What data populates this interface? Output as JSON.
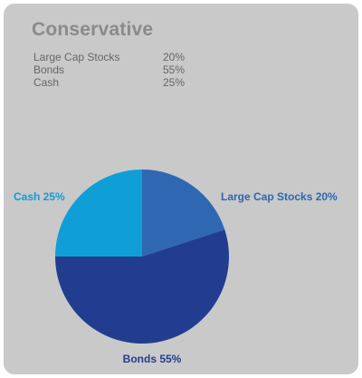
{
  "title": "Conservative",
  "allocation_table": [
    {
      "name": "Large Cap Stocks",
      "percent": "20%"
    },
    {
      "name": "Bonds",
      "percent": "55%"
    },
    {
      "name": "Cash",
      "percent": "25%"
    }
  ],
  "chart_data": {
    "type": "pie",
    "title": "Conservative",
    "start_angle_deg": 0,
    "direction": "clockwise",
    "slices": [
      {
        "label": "Large Cap Stocks",
        "value": 20,
        "display": "Large Cap Stocks 20%",
        "color": "#2f67b2"
      },
      {
        "label": "Bonds",
        "value": 55,
        "display": "Bonds 55%",
        "color": "#223d8f"
      },
      {
        "label": "Cash",
        "value": 25,
        "display": "Cash 25%",
        "color": "#0f9fd6"
      }
    ],
    "label_colors": [
      "#2f67b2",
      "#223d8f",
      "#139bd3"
    ]
  }
}
